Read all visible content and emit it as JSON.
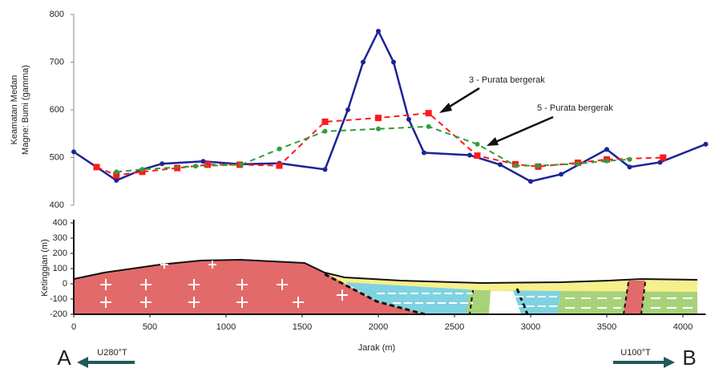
{
  "chart_data": [
    {
      "type": "line",
      "ylabel": [
        "Keamatan Medan",
        "Magne: Bumi (gamma)"
      ],
      "xlim": [
        0,
        4150
      ],
      "ylim": [
        400,
        800
      ],
      "yticks": [
        400,
        500,
        600,
        700,
        800
      ],
      "series": [
        {
          "color": "#1c2496",
          "dash": false,
          "marker": "circle",
          "x": [
            0,
            150,
            280,
            450,
            580,
            850,
            1100,
            1350,
            1650,
            1800,
            1900,
            2000,
            2100,
            2200,
            2300,
            2600,
            2800,
            3000,
            3200,
            3500,
            3650,
            3850,
            4150
          ],
          "values": [
            512,
            480,
            452,
            475,
            487,
            492,
            486,
            488,
            475,
            600,
            700,
            765,
            700,
            580,
            510,
            505,
            485,
            450,
            465,
            517,
            480,
            490,
            528
          ]
        },
        {
          "name": "3 - Purata bergerak",
          "color": "#ff1a1a",
          "dash": true,
          "marker": "square",
          "x": [
            150,
            280,
            450,
            680,
            880,
            1090,
            1350,
            1650,
            2000,
            2330,
            2650,
            2900,
            3050,
            3310,
            3500,
            3870
          ],
          "values": [
            480,
            463,
            470,
            478,
            485,
            485,
            483,
            575,
            583,
            593,
            504,
            486,
            481,
            489,
            496,
            500
          ]
        },
        {
          "name": "5 - Purata bergerak",
          "color": "#2e9e3a",
          "dash": true,
          "marker": "circle",
          "x": [
            280,
            450,
            800,
            1100,
            1350,
            1650,
            2000,
            2330,
            2650,
            2900,
            3050,
            3310,
            3500,
            3650
          ],
          "values": [
            470,
            475,
            482,
            485,
            518,
            555,
            560,
            565,
            528,
            483,
            483,
            487,
            493,
            496
          ]
        }
      ]
    },
    {
      "type": "cross-section",
      "xlabel": "Jarak (m)",
      "ylabel": "Ketinggian (m)",
      "xlim": [
        0,
        4150
      ],
      "xticks": [
        0,
        500,
        1000,
        1500,
        2000,
        2500,
        3000,
        3500,
        4000
      ],
      "ylim": [
        -200,
        400
      ],
      "yticks": [
        -200,
        -100,
        0,
        100,
        200,
        300,
        400
      ],
      "start_label": "A",
      "end_label": "B",
      "start_direction": "U280°T",
      "end_direction": "U100°T"
    }
  ]
}
